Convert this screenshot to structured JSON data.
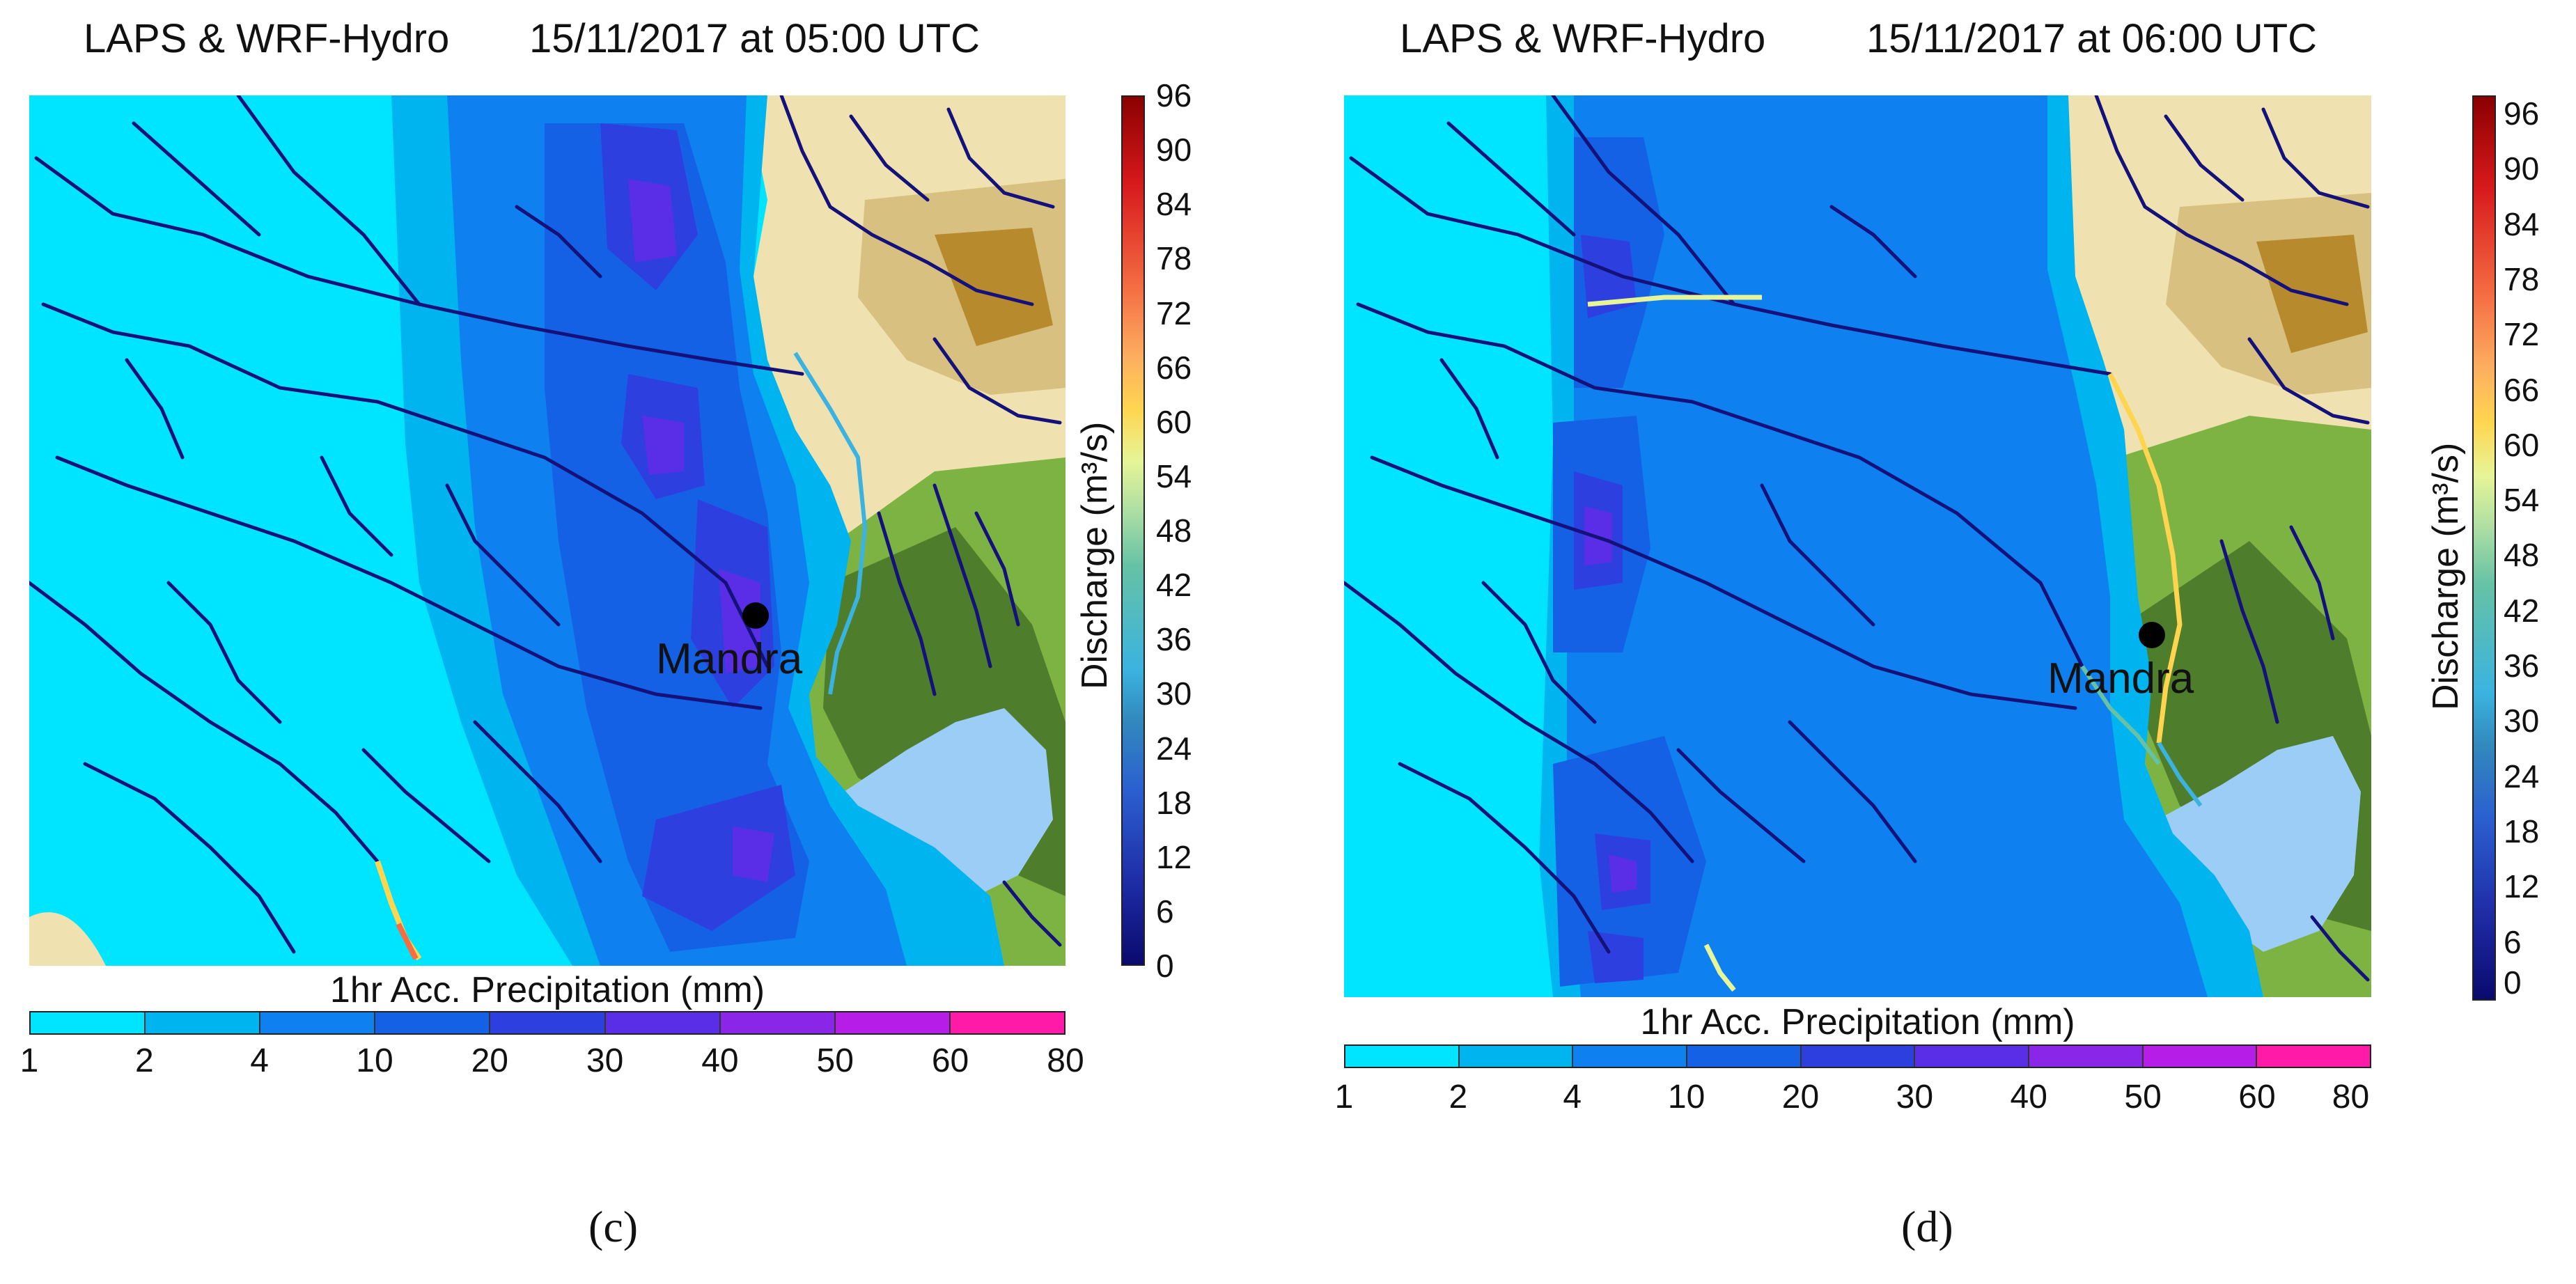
{
  "panels": [
    {
      "id": "c",
      "title_left": "LAPS & WRF-Hydro",
      "title_right": "15/11/2017 at 05:00 UTC",
      "caption": "(c)",
      "place": "Mandra"
    },
    {
      "id": "d",
      "title_left": "LAPS & WRF-Hydro",
      "title_right": "15/11/2017 at 06:00 UTC",
      "caption": "(d)",
      "place": "Mandra"
    }
  ],
  "discharge_colorbar": {
    "label": "Discharge (m³/s)",
    "ticks": [
      "96",
      "90",
      "84",
      "78",
      "72",
      "66",
      "60",
      "54",
      "48",
      "42",
      "36",
      "30",
      "24",
      "18",
      "12",
      "6",
      "0"
    ],
    "colors": [
      "#8b0000",
      "#d7191c",
      "#f46d43",
      "#fdae61",
      "#ffd54f",
      "#e6f598",
      "#abdda4",
      "#66c2a5",
      "#3bb3e0",
      "#3288bd",
      "#2b5fd0",
      "#1f2ea8",
      "#0a0a6e"
    ]
  },
  "precip_colorbar": {
    "label": "1hr Acc. Precipitation (mm)",
    "ticks": [
      "1",
      "2",
      "4",
      "10",
      "20",
      "30",
      "40",
      "50",
      "60",
      "80"
    ],
    "colors": [
      "#00e5ff",
      "#00b4f0",
      "#0f80ef",
      "#1561e6",
      "#2e3fe0",
      "#5a2ee6",
      "#8a26e8",
      "#b61ee8",
      "#e018e6",
      "#ff1aa8"
    ]
  },
  "colors": {
    "background_precip": "#00e5ff",
    "river": "#14127a",
    "lake": "#9ccdf7",
    "terrain_light": "#efe2b0",
    "terrain_tan": "#d8c080",
    "terrain_brown": "#b78a2e",
    "terrain_green": "#7cb342",
    "terrain_dark": "#4e7d2b"
  }
}
